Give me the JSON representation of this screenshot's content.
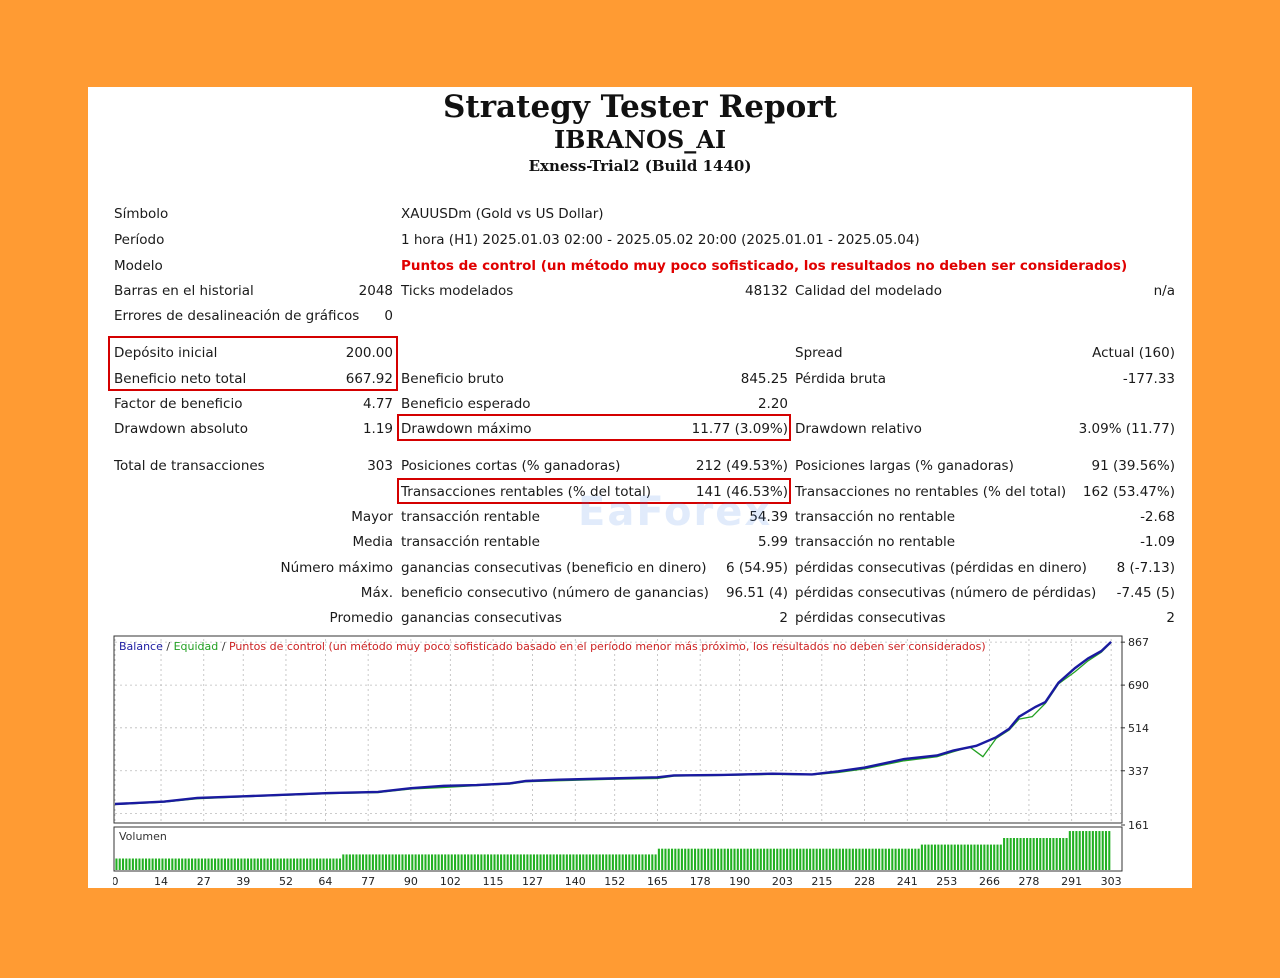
{
  "header": {
    "title": "Strategy Tester Report",
    "expert": "IBRANOS_AI",
    "server": "Exness-Trial2 (Build 1440)"
  },
  "info": {
    "symbol_label": "Símbolo",
    "symbol_value": "XAUUSDm (Gold vs US Dollar)",
    "period_label": "Período",
    "period_value": "1 hora (H1) 2025.01.03 02:00 - 2025.05.02 20:00 (2025.01.01 - 2025.05.04)",
    "model_label": "Modelo",
    "model_value": "Puntos de control (un método muy poco sofisticado, los resultados no deben ser considerados)",
    "bars_label": "Barras en el historial",
    "bars_value": "2048",
    "ticks_label": "Ticks modelados",
    "ticks_value": "48132",
    "quality_label": "Calidad del modelado",
    "quality_value": "n/a",
    "errors_label": "Errores de desalineación de gráficos",
    "errors_value": "0"
  },
  "results": {
    "deposit_label": "Depósito inicial",
    "deposit_value": "200.00",
    "spread_label": "Spread",
    "spread_value": "Actual (160)",
    "net_profit_label": "Beneficio neto total",
    "net_profit_value": "667.92",
    "gross_profit_label": "Beneficio bruto",
    "gross_profit_value": "845.25",
    "gross_loss_label": "Pérdida bruta",
    "gross_loss_value": "-177.33",
    "profit_factor_label": "Factor de beneficio",
    "profit_factor_value": "4.77",
    "expected_payoff_label": "Beneficio esperado",
    "expected_payoff_value": "2.20",
    "abs_dd_label": "Drawdown absoluto",
    "abs_dd_value": "1.19",
    "max_dd_label": "Drawdown máximo",
    "max_dd_value": "11.77 (3.09%)",
    "rel_dd_label": "Drawdown relativo",
    "rel_dd_value": "3.09% (11.77)",
    "total_trades_label": "Total de transacciones",
    "total_trades_value": "303",
    "short_label": "Posiciones cortas (% ganadoras)",
    "short_value": "212 (49.53%)",
    "long_label": "Posiciones largas (% ganadoras)",
    "long_value": "91 (39.56%)",
    "profit_trades_label": "Transacciones rentables (% del total)",
    "profit_trades_value": "141 (46.53%)",
    "loss_trades_label": "Transacciones no rentables (% del total)",
    "loss_trades_value": "162 (53.47%)",
    "largest_prefix": "Mayor",
    "largest_profit_label": "transacción rentable",
    "largest_profit_value": "54.39",
    "largest_loss_label": "transacción no rentable",
    "largest_loss_value": "-2.68",
    "average_prefix": "Media",
    "average_profit_label": "transacción rentable",
    "average_profit_value": "5.99",
    "average_loss_label": "transacción no rentable",
    "average_loss_value": "-1.09",
    "max_prefix": "Número máximo",
    "max_cons_wins_label": "ganancias consecutivas (beneficio en dinero)",
    "max_cons_wins_value": "6 (54.95)",
    "max_cons_losses_label": "pérdidas consecutivas (pérdidas en dinero)",
    "max_cons_losses_value": "8 (-7.13)",
    "maximal_prefix": "Máx.",
    "maximal_cons_profit_label": "beneficio consecutivo (número de ganancias)",
    "maximal_cons_profit_value": "96.51 (4)",
    "maximal_cons_loss_label": "pérdidas consecutivas (número de pérdidas)",
    "maximal_cons_loss_value": "-7.45 (5)",
    "avg_prefix": "Promedio",
    "avg_cons_wins_label": "ganancias consecutivas",
    "avg_cons_wins_value": "2",
    "avg_cons_losses_label": "pérdidas consecutivas",
    "avg_cons_losses_value": "2"
  },
  "watermark": "EaForex",
  "chart_data": {
    "type": "line",
    "legend": {
      "balance": "Balance",
      "sep1": " / ",
      "equity": "Equidad",
      "sep2": " / ",
      "note": "Puntos de control (un método muy poco sofisticado basado en el período menor más próximo, los resultados no deben ser considerados)"
    },
    "colors": {
      "balance": "#1a1aa0",
      "equity": "#22a022",
      "note": "#cc2222",
      "volume": "#22b022"
    },
    "volume_label": "Volumen",
    "yticks": [
      "867",
      "690",
      "514",
      "337",
      "161"
    ],
    "ytick_values": [
      867,
      690,
      514,
      337,
      161
    ],
    "xticks": [
      "0",
      "14",
      "27",
      "39",
      "52",
      "64",
      "77",
      "90",
      "102",
      "115",
      "127",
      "140",
      "152",
      "165",
      "178",
      "190",
      "203",
      "215",
      "228",
      "241",
      "253",
      "266",
      "278",
      "291",
      "303"
    ],
    "xtick_values": [
      0,
      14,
      27,
      39,
      52,
      64,
      77,
      90,
      102,
      115,
      127,
      140,
      152,
      165,
      178,
      190,
      203,
      215,
      228,
      241,
      253,
      266,
      278,
      291,
      303
    ],
    "xlim": [
      0,
      306
    ],
    "ylim": [
      130,
      880
    ],
    "balance": {
      "x": [
        0,
        15,
        25,
        40,
        55,
        65,
        80,
        90,
        100,
        110,
        120,
        125,
        135,
        150,
        165,
        170,
        185,
        200,
        212,
        220,
        228,
        240,
        250,
        255,
        262,
        268,
        272,
        275,
        280,
        283,
        287,
        292,
        296,
        300,
        303
      ],
      "y": [
        200,
        210,
        225,
        232,
        240,
        245,
        250,
        265,
        275,
        278,
        285,
        295,
        300,
        305,
        310,
        318,
        320,
        325,
        322,
        335,
        350,
        385,
        400,
        420,
        440,
        475,
        510,
        560,
        600,
        620,
        700,
        760,
        800,
        830,
        868
      ]
    },
    "equity": {
      "x": [
        0,
        15,
        25,
        40,
        55,
        65,
        80,
        90,
        100,
        110,
        120,
        125,
        135,
        150,
        165,
        170,
        185,
        200,
        212,
        220,
        228,
        240,
        250,
        255,
        260,
        264,
        268,
        272,
        275,
        279,
        283,
        287,
        292,
        296,
        300,
        303
      ],
      "y": [
        198,
        208,
        222,
        230,
        238,
        243,
        247,
        262,
        268,
        276,
        282,
        292,
        296,
        302,
        305,
        315,
        318,
        322,
        320,
        330,
        345,
        378,
        395,
        415,
        435,
        395,
        470,
        505,
        550,
        560,
        615,
        695,
        745,
        790,
        825,
        866
      ]
    },
    "volume": [
      {
        "from": 0,
        "to": 69,
        "level": 0.28
      },
      {
        "from": 69,
        "to": 165,
        "level": 0.38
      },
      {
        "from": 165,
        "to": 245,
        "level": 0.52
      },
      {
        "from": 245,
        "to": 270,
        "level": 0.62
      },
      {
        "from": 270,
        "to": 290,
        "level": 0.78
      },
      {
        "from": 290,
        "to": 303,
        "level": 0.95
      }
    ]
  }
}
